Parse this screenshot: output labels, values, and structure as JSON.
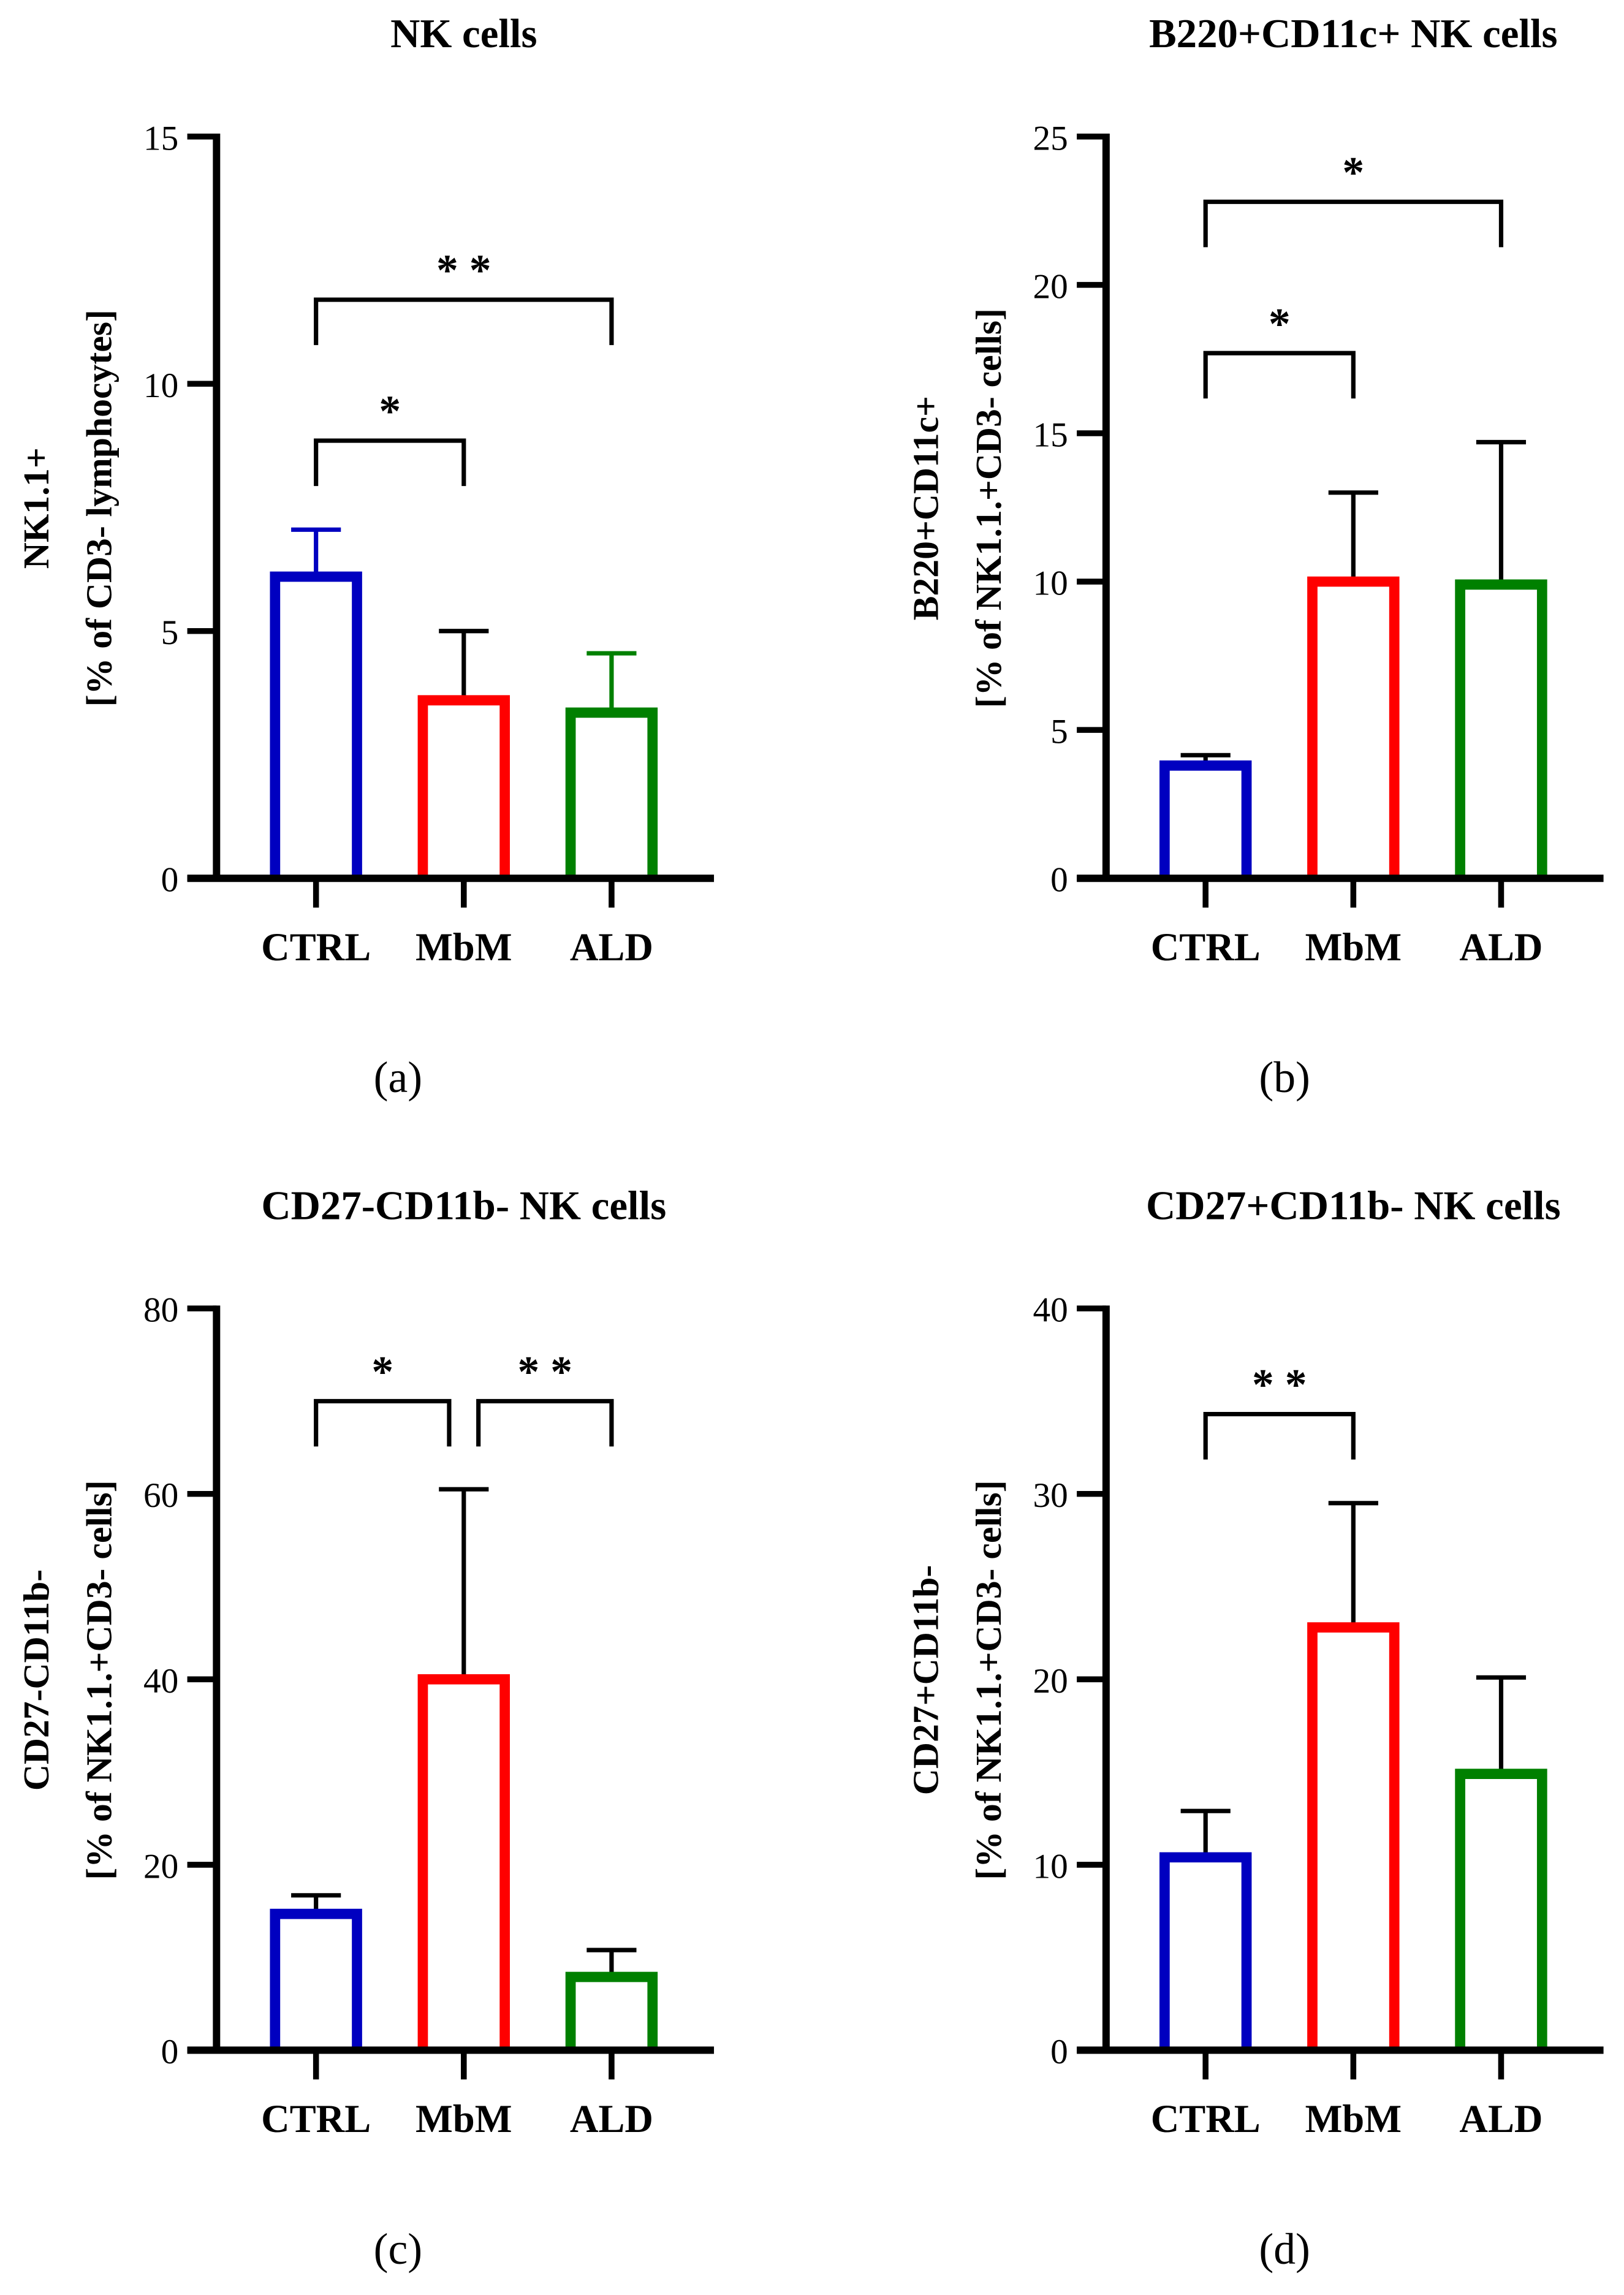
{
  "chart_data": [
    {
      "type": "bar",
      "panel_label": "(a)",
      "title": "NK cells",
      "ylabel": [
        "NK1.1+",
        "[% of CD3- lymphocytes]"
      ],
      "categories": [
        "CTRL",
        "MbM",
        "ALD"
      ],
      "values": [
        6.1,
        3.6,
        3.35
      ],
      "error_upper": [
        7.05,
        5.0,
        4.55
      ],
      "ylim": [
        0,
        15
      ],
      "yticks": [
        0,
        5,
        10,
        15
      ],
      "bar_colors": [
        "#0000c0",
        "#ff0000",
        "#008000"
      ],
      "error_colors": [
        "#0000c0",
        "#000000",
        "#008000"
      ],
      "significance": [
        {
          "from": "CTRL",
          "to": "MbM",
          "label": "*",
          "y": 8.85
        },
        {
          "from": "CTRL",
          "to": "ALD",
          "label": "* *",
          "y": 11.7
        }
      ],
      "grid": false
    },
    {
      "type": "bar",
      "panel_label": "(b)",
      "title": "B220+CD11c+ NK cells",
      "ylabel": [
        "B220+CD11c+",
        "[% of NK1.1.+CD3- cells]"
      ],
      "categories": [
        "CTRL",
        "MbM",
        "ALD"
      ],
      "values": [
        3.8,
        10.0,
        9.9
      ],
      "error_upper": [
        4.15,
        13.0,
        14.7
      ],
      "ylim": [
        0,
        25
      ],
      "yticks": [
        0,
        5,
        10,
        15,
        20,
        25
      ],
      "bar_colors": [
        "#0000c0",
        "#ff0000",
        "#008000"
      ],
      "error_colors": [
        "#000000",
        "#000000",
        "#000000"
      ],
      "significance": [
        {
          "from": "CTRL",
          "to": "MbM",
          "label": "*",
          "y": 17.7
        },
        {
          "from": "CTRL",
          "to": "ALD",
          "label": "*",
          "y": 22.8
        }
      ],
      "grid": false
    },
    {
      "type": "bar",
      "panel_label": "(c)",
      "title": "CD27-CD11b- NK cells",
      "ylabel": [
        "CD27-CD11b-",
        "[% of NK1.1.+CD3- cells]"
      ],
      "categories": [
        "CTRL",
        "MbM",
        "ALD"
      ],
      "values": [
        14.7,
        40.0,
        7.9
      ],
      "error_upper": [
        16.7,
        60.5,
        10.8
      ],
      "ylim": [
        0,
        80
      ],
      "yticks": [
        0,
        20,
        40,
        60,
        80
      ],
      "bar_colors": [
        "#0000c0",
        "#ff0000",
        "#008000"
      ],
      "error_colors": [
        "#000000",
        "#000000",
        "#000000"
      ],
      "significance": [
        {
          "from": "CTRL",
          "to": "MbM",
          "label": "*",
          "y": 70
        },
        {
          "from": "MbM",
          "to": "ALD",
          "label": "* *",
          "y": 70
        }
      ],
      "grid": false
    },
    {
      "type": "bar",
      "panel_label": "(d)",
      "title": "CD27+CD11b- NK cells",
      "ylabel": [
        "CD27+CD11b-",
        "[% of NK1.1.+CD3- cells]"
      ],
      "categories": [
        "CTRL",
        "MbM",
        "ALD"
      ],
      "values": [
        10.4,
        22.8,
        14.9
      ],
      "error_upper": [
        12.9,
        29.5,
        20.1
      ],
      "ylim": [
        0,
        40
      ],
      "yticks": [
        0,
        10,
        20,
        30,
        40
      ],
      "bar_colors": [
        "#0000c0",
        "#ff0000",
        "#008000"
      ],
      "error_colors": [
        "#000000",
        "#000000",
        "#000000"
      ],
      "significance": [
        {
          "from": "CTRL",
          "to": "MbM",
          "label": "* *",
          "y": 34.3
        }
      ],
      "grid": false
    }
  ]
}
